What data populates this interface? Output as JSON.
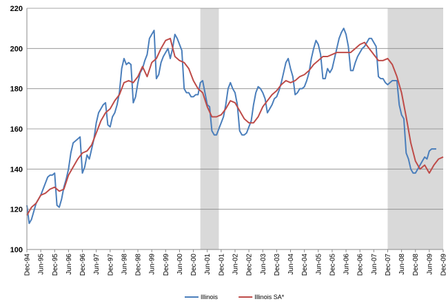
{
  "chart_data": {
    "type": "line",
    "title": "",
    "xlabel": "",
    "ylabel": "",
    "ylim": [
      100,
      220
    ],
    "yticks": [
      100,
      120,
      140,
      160,
      180,
      200,
      220
    ],
    "grid": "horizontal",
    "legend_position": "bottom-center",
    "x_start": "Dec-94",
    "x_end": "Dec-09",
    "x_tick_labels": [
      "Dec-94",
      "Jun-95",
      "Dec-95",
      "Jun-96",
      "Dec-96",
      "Jun-97",
      "Dec-97",
      "Jun-98",
      "Dec-98",
      "Jun-99",
      "Dec-99",
      "Jun-00",
      "Dec-00",
      "Jun-01",
      "Dec-01",
      "Jun-02",
      "Dec-02",
      "Jun-03",
      "Dec-03",
      "Jun-04",
      "Dec-04",
      "Jun-05",
      "Dec-05",
      "Jun-06",
      "Dec-06",
      "Jun-07",
      "Dec-07",
      "Jun-08",
      "Dec-08",
      "Jun-09",
      "Dec-09"
    ],
    "shaded_periods": [
      {
        "start": "Mar-01",
        "end": "Nov-01",
        "color": "#d9d9d9"
      },
      {
        "start": "Dec-07",
        "end": "Dec-09",
        "color": "#d9d9d9"
      }
    ],
    "series": [
      {
        "name": "Illinois",
        "color": "#4a7ebb",
        "points": [
          [
            "Dec-94",
            122
          ],
          [
            "Jan-95",
            113
          ],
          [
            "Feb-95",
            115
          ],
          [
            "Mar-95",
            119
          ],
          [
            "Apr-95",
            123
          ],
          [
            "May-95",
            125
          ],
          [
            "Jun-95",
            127
          ],
          [
            "Jul-95",
            130
          ],
          [
            "Aug-95",
            133
          ],
          [
            "Sep-95",
            136
          ],
          [
            "Oct-95",
            137
          ],
          [
            "Nov-95",
            137
          ],
          [
            "Dec-95",
            138
          ],
          [
            "Jan-96",
            122
          ],
          [
            "Feb-96",
            121
          ],
          [
            "Mar-96",
            125
          ],
          [
            "Apr-96",
            131
          ],
          [
            "May-96",
            135
          ],
          [
            "Jun-96",
            140
          ],
          [
            "Jul-96",
            148
          ],
          [
            "Aug-96",
            153
          ],
          [
            "Sep-96",
            154
          ],
          [
            "Oct-96",
            155
          ],
          [
            "Nov-96",
            156
          ],
          [
            "Dec-96",
            138
          ],
          [
            "Jan-97",
            141
          ],
          [
            "Feb-97",
            147
          ],
          [
            "Mar-97",
            145
          ],
          [
            "Apr-97",
            150
          ],
          [
            "May-97",
            155
          ],
          [
            "Jun-97",
            163
          ],
          [
            "Jul-97",
            168
          ],
          [
            "Aug-97",
            170
          ],
          [
            "Sep-97",
            172
          ],
          [
            "Oct-97",
            173
          ],
          [
            "Nov-97",
            162
          ],
          [
            "Dec-97",
            161
          ],
          [
            "Jan-98",
            166
          ],
          [
            "Feb-98",
            168
          ],
          [
            "Mar-98",
            172
          ],
          [
            "Apr-98",
            178
          ],
          [
            "May-98",
            190
          ],
          [
            "Jun-98",
            195
          ],
          [
            "Jul-98",
            192
          ],
          [
            "Aug-98",
            193
          ],
          [
            "Sep-98",
            192
          ],
          [
            "Oct-98",
            173
          ],
          [
            "Nov-98",
            176
          ],
          [
            "Dec-98",
            183
          ],
          [
            "Jan-99",
            188
          ],
          [
            "Feb-99",
            190
          ],
          [
            "Mar-99",
            194
          ],
          [
            "Apr-99",
            197
          ],
          [
            "May-99",
            205
          ],
          [
            "Jun-99",
            207
          ],
          [
            "Jul-99",
            209
          ],
          [
            "Aug-99",
            185
          ],
          [
            "Sep-99",
            187
          ],
          [
            "Oct-99",
            193
          ],
          [
            "Nov-99",
            196
          ],
          [
            "Dec-99",
            198
          ],
          [
            "Jan-00",
            200
          ],
          [
            "Feb-00",
            195
          ],
          [
            "Mar-00",
            200
          ],
          [
            "Apr-00",
            207
          ],
          [
            "May-00",
            205
          ],
          [
            "Jun-00",
            202
          ],
          [
            "Jul-00",
            199
          ],
          [
            "Aug-00",
            180
          ],
          [
            "Sep-00",
            178
          ],
          [
            "Oct-00",
            178
          ],
          [
            "Nov-00",
            176
          ],
          [
            "Dec-00",
            176
          ],
          [
            "Jan-01",
            177
          ],
          [
            "Feb-01",
            177
          ],
          [
            "Mar-01",
            183
          ],
          [
            "Apr-01",
            184
          ],
          [
            "May-01",
            178
          ],
          [
            "Jun-01",
            172
          ],
          [
            "Jul-01",
            171
          ],
          [
            "Aug-01",
            159
          ],
          [
            "Sep-01",
            157
          ],
          [
            "Oct-01",
            157
          ],
          [
            "Nov-01",
            160
          ],
          [
            "Dec-01",
            163
          ],
          [
            "Jan-02",
            166
          ],
          [
            "Feb-02",
            172
          ],
          [
            "Mar-02",
            180
          ],
          [
            "Apr-02",
            183
          ],
          [
            "May-02",
            180
          ],
          [
            "Jun-02",
            178
          ],
          [
            "Jul-02",
            172
          ],
          [
            "Aug-02",
            159
          ],
          [
            "Sep-02",
            157
          ],
          [
            "Oct-02",
            157
          ],
          [
            "Nov-02",
            158
          ],
          [
            "Dec-02",
            161
          ],
          [
            "Jan-03",
            164
          ],
          [
            "Feb-03",
            172
          ],
          [
            "Mar-03",
            178
          ],
          [
            "Apr-03",
            181
          ],
          [
            "May-03",
            180
          ],
          [
            "Jun-03",
            178
          ],
          [
            "Jul-03",
            175
          ],
          [
            "Aug-03",
            168
          ],
          [
            "Sep-03",
            170
          ],
          [
            "Oct-03",
            172
          ],
          [
            "Nov-03",
            175
          ],
          [
            "Dec-03",
            176
          ],
          [
            "Jan-04",
            179
          ],
          [
            "Feb-04",
            183
          ],
          [
            "Mar-04",
            188
          ],
          [
            "Apr-04",
            193
          ],
          [
            "May-04",
            195
          ],
          [
            "Jun-04",
            190
          ],
          [
            "Jul-04",
            186
          ],
          [
            "Aug-04",
            177
          ],
          [
            "Sep-04",
            178
          ],
          [
            "Oct-04",
            180
          ],
          [
            "Nov-04",
            180
          ],
          [
            "Dec-04",
            181
          ],
          [
            "Jan-05",
            184
          ],
          [
            "Feb-05",
            188
          ],
          [
            "Mar-05",
            195
          ],
          [
            "Apr-05",
            200
          ],
          [
            "May-05",
            204
          ],
          [
            "Jun-05",
            202
          ],
          [
            "Jul-05",
            197
          ],
          [
            "Aug-05",
            185
          ],
          [
            "Sep-05",
            185
          ],
          [
            "Oct-05",
            190
          ],
          [
            "Nov-05",
            188
          ],
          [
            "Dec-05",
            190
          ],
          [
            "Jan-06",
            195
          ],
          [
            "Feb-06",
            200
          ],
          [
            "Mar-06",
            205
          ],
          [
            "Apr-06",
            208
          ],
          [
            "May-06",
            210
          ],
          [
            "Jun-06",
            207
          ],
          [
            "Jul-06",
            201
          ],
          [
            "Aug-06",
            189
          ],
          [
            "Sep-06",
            189
          ],
          [
            "Oct-06",
            193
          ],
          [
            "Nov-06",
            196
          ],
          [
            "Dec-06",
            198
          ],
          [
            "Jan-07",
            200
          ],
          [
            "Feb-07",
            201
          ],
          [
            "Mar-07",
            203
          ],
          [
            "Apr-07",
            205
          ],
          [
            "May-07",
            205
          ],
          [
            "Jun-07",
            203
          ],
          [
            "Jul-07",
            201
          ],
          [
            "Aug-07",
            186
          ],
          [
            "Sep-07",
            185
          ],
          [
            "Oct-07",
            185
          ],
          [
            "Nov-07",
            183
          ],
          [
            "Dec-07",
            182
          ],
          [
            "Jan-08",
            183
          ],
          [
            "Feb-08",
            184
          ],
          [
            "Mar-08",
            184
          ],
          [
            "Apr-08",
            184
          ],
          [
            "May-08",
            172
          ],
          [
            "Jun-08",
            167
          ],
          [
            "Jul-08",
            165
          ],
          [
            "Aug-08",
            148
          ],
          [
            "Sep-08",
            145
          ],
          [
            "Oct-08",
            140
          ],
          [
            "Nov-08",
            138
          ],
          [
            "Dec-08",
            138
          ],
          [
            "Jan-09",
            140
          ],
          [
            "Feb-09",
            142
          ],
          [
            "Mar-09",
            144
          ],
          [
            "Apr-09",
            146
          ],
          [
            "May-09",
            145
          ],
          [
            "Jun-09",
            149
          ],
          [
            "Jul-09",
            150
          ],
          [
            "Aug-09",
            150
          ],
          [
            "Sep-09",
            150
          ]
        ]
      },
      {
        "name": "Illinois SA*",
        "color": "#be4b48",
        "points": [
          [
            "Dec-94",
            117
          ],
          [
            "Feb-95",
            121
          ],
          [
            "Apr-95",
            123
          ],
          [
            "Jun-95",
            127
          ],
          [
            "Aug-95",
            128
          ],
          [
            "Oct-95",
            130
          ],
          [
            "Dec-95",
            131
          ],
          [
            "Feb-96",
            129
          ],
          [
            "Apr-96",
            130
          ],
          [
            "Jun-96",
            137
          ],
          [
            "Aug-96",
            141
          ],
          [
            "Oct-96",
            145
          ],
          [
            "Dec-96",
            148
          ],
          [
            "Feb-97",
            149
          ],
          [
            "Apr-97",
            152
          ],
          [
            "Jun-97",
            158
          ],
          [
            "Aug-97",
            164
          ],
          [
            "Oct-97",
            168
          ],
          [
            "Dec-97",
            170
          ],
          [
            "Feb-98",
            174
          ],
          [
            "Apr-98",
            177
          ],
          [
            "Jun-98",
            183
          ],
          [
            "Aug-98",
            184
          ],
          [
            "Oct-98",
            183
          ],
          [
            "Dec-98",
            186
          ],
          [
            "Feb-99",
            191
          ],
          [
            "Apr-99",
            186
          ],
          [
            "Jun-99",
            193
          ],
          [
            "Aug-99",
            195
          ],
          [
            "Oct-99",
            200
          ],
          [
            "Dec-99",
            204
          ],
          [
            "Feb-00",
            205
          ],
          [
            "Apr-00",
            196
          ],
          [
            "Jun-00",
            194
          ],
          [
            "Aug-00",
            193
          ],
          [
            "Oct-00",
            190
          ],
          [
            "Dec-00",
            184
          ],
          [
            "Feb-01",
            180
          ],
          [
            "Apr-01",
            178
          ],
          [
            "Jun-01",
            171
          ],
          [
            "Aug-01",
            166
          ],
          [
            "Oct-01",
            166
          ],
          [
            "Dec-01",
            167
          ],
          [
            "Feb-02",
            170
          ],
          [
            "Apr-02",
            174
          ],
          [
            "Jun-02",
            173
          ],
          [
            "Aug-02",
            169
          ],
          [
            "Oct-02",
            165
          ],
          [
            "Dec-02",
            163
          ],
          [
            "Feb-03",
            163
          ],
          [
            "Apr-03",
            166
          ],
          [
            "Jun-03",
            171
          ],
          [
            "Aug-03",
            174
          ],
          [
            "Oct-03",
            177
          ],
          [
            "Dec-03",
            179
          ],
          [
            "Feb-04",
            182
          ],
          [
            "Apr-04",
            184
          ],
          [
            "Jun-04",
            183
          ],
          [
            "Aug-04",
            184
          ],
          [
            "Oct-04",
            186
          ],
          [
            "Dec-04",
            187
          ],
          [
            "Feb-05",
            189
          ],
          [
            "Apr-05",
            192
          ],
          [
            "Jun-05",
            194
          ],
          [
            "Aug-05",
            196
          ],
          [
            "Oct-05",
            196
          ],
          [
            "Dec-05",
            197
          ],
          [
            "Feb-06",
            198
          ],
          [
            "Apr-06",
            198
          ],
          [
            "Jun-06",
            198
          ],
          [
            "Aug-06",
            198
          ],
          [
            "Oct-06",
            200
          ],
          [
            "Dec-06",
            202
          ],
          [
            "Feb-07",
            203
          ],
          [
            "Apr-07",
            200
          ],
          [
            "Jun-07",
            197
          ],
          [
            "Aug-07",
            194
          ],
          [
            "Oct-07",
            194
          ],
          [
            "Dec-07",
            195
          ],
          [
            "Feb-08",
            192
          ],
          [
            "Apr-08",
            186
          ],
          [
            "Jun-08",
            178
          ],
          [
            "Aug-08",
            166
          ],
          [
            "Oct-08",
            153
          ],
          [
            "Dec-08",
            144
          ],
          [
            "Feb-09",
            140
          ],
          [
            "Apr-09",
            142
          ],
          [
            "Jun-09",
            138
          ],
          [
            "Aug-09",
            142
          ],
          [
            "Oct-09",
            145
          ],
          [
            "Dec-09",
            146
          ]
        ]
      }
    ]
  }
}
